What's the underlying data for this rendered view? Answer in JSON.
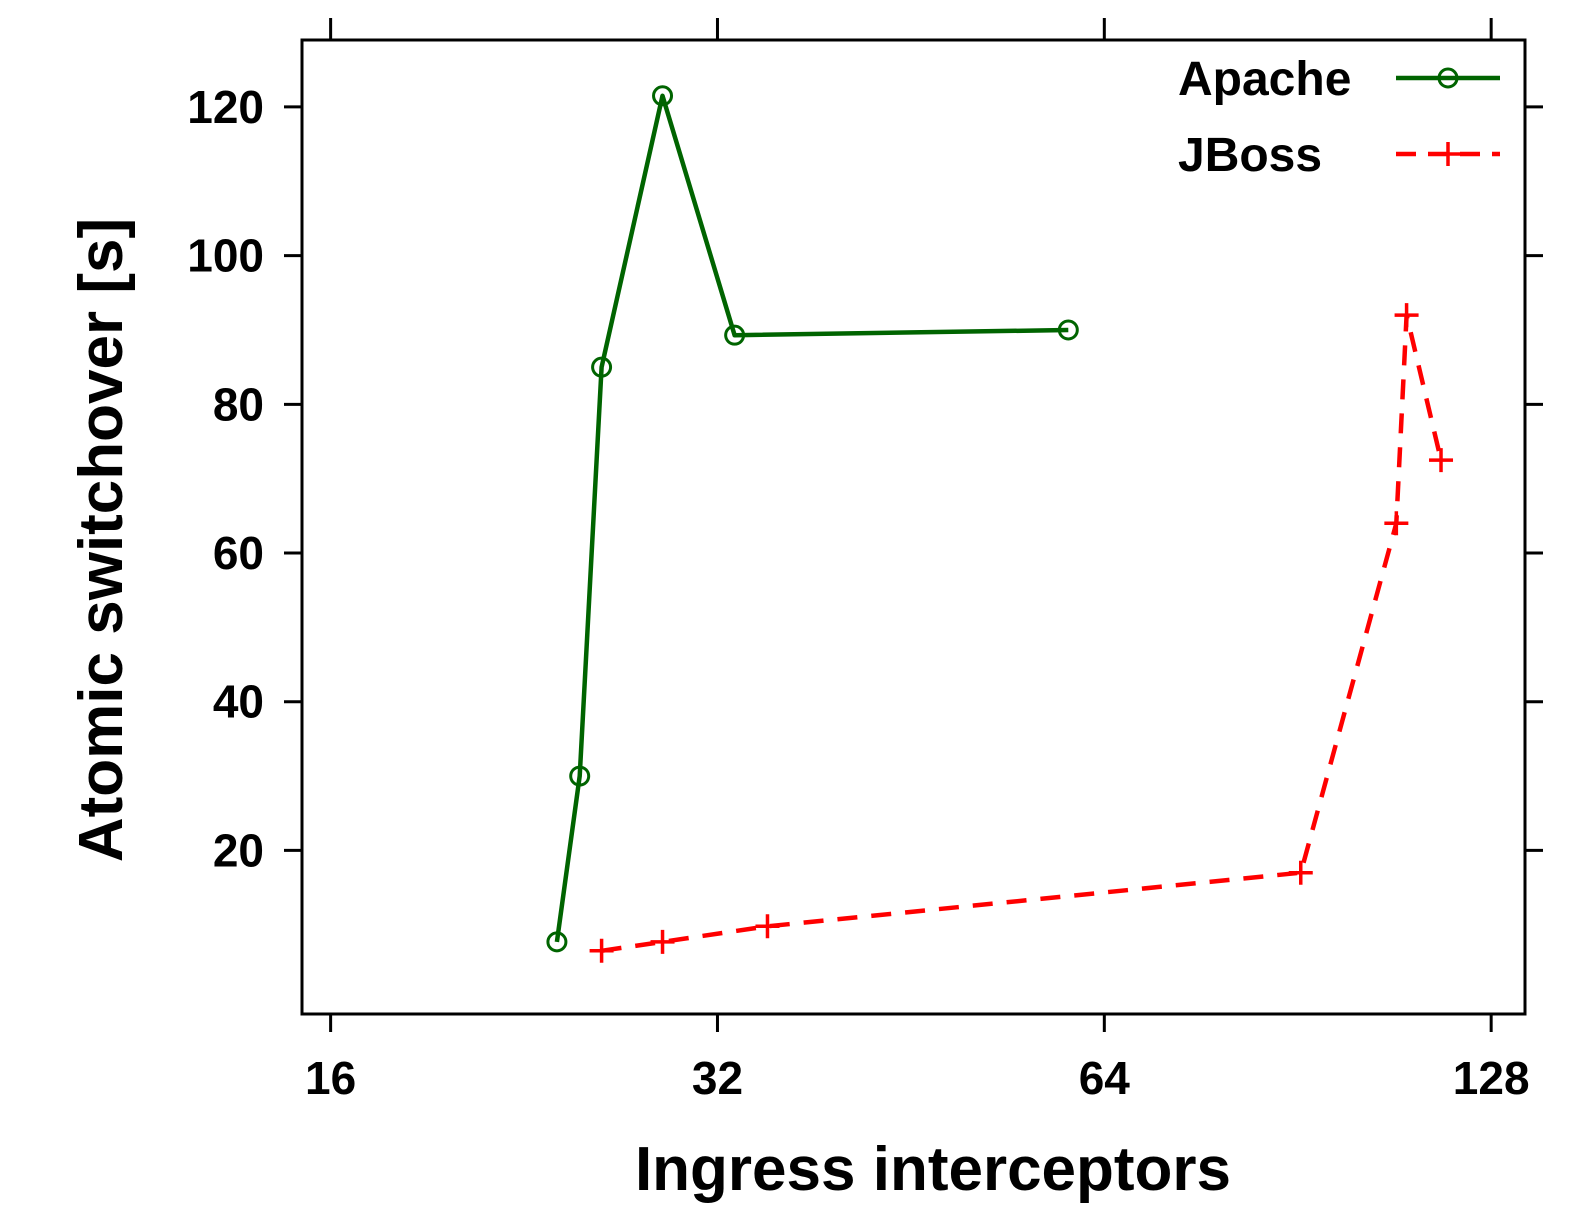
{
  "chart_data": {
    "type": "line",
    "xlabel": "Ingress interceptors",
    "ylabel": "Atomic switchover [s]",
    "x_scale": "log2",
    "xlim": [
      15.2,
      136
    ],
    "ylim": [
      -2,
      129
    ],
    "x_ticks": [
      16,
      32,
      64,
      128
    ],
    "x_tick_labels": [
      "16",
      "32",
      "64",
      "128"
    ],
    "y_ticks": [
      20,
      40,
      60,
      80,
      100,
      120
    ],
    "y_tick_labels": [
      "20",
      "40",
      "60",
      "80",
      "100",
      "120"
    ],
    "grid": false,
    "legend_position": "top-right",
    "series": [
      {
        "name": "Apache",
        "color": "#006400",
        "line_style": "solid",
        "marker": "circle",
        "x": [
          24,
          25,
          26,
          29,
          33,
          60
        ],
        "y": [
          7.7,
          30,
          85,
          121.5,
          89.3,
          90
        ]
      },
      {
        "name": "JBoss",
        "color": "#ff0000",
        "line_style": "dashed",
        "marker": "plus",
        "x": [
          26,
          29,
          35,
          91,
          108,
          110,
          117
        ],
        "y": [
          6.5,
          7.7,
          9.8,
          17,
          64,
          92,
          72.5
        ]
      }
    ]
  }
}
